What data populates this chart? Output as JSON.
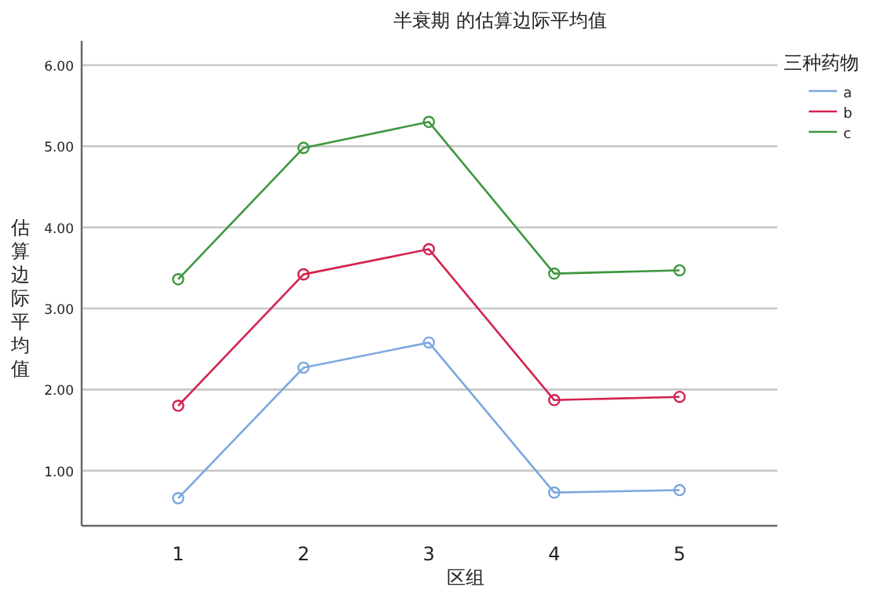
{
  "chart_data": {
    "type": "line",
    "title": "半衰期 的估算边际平均值",
    "xlabel": "区组",
    "ylabel": "估算边际平均值",
    "legend_title": "三种药物",
    "categories": [
      "1",
      "2",
      "3",
      "4",
      "5"
    ],
    "series": [
      {
        "name": "a",
        "color": "#7ca7de",
        "values": [
          0.66,
          2.27,
          2.58,
          0.73,
          0.76
        ]
      },
      {
        "name": "b",
        "color": "#d2244f",
        "values": [
          1.8,
          3.42,
          3.73,
          1.87,
          1.91
        ]
      },
      {
        "name": "c",
        "color": "#3f973f",
        "values": [
          3.36,
          4.98,
          5.3,
          3.43,
          3.47
        ]
      }
    ],
    "ylim": [
      0.32,
      6.3
    ],
    "yticks": [
      {
        "value": 1,
        "label": "1.00"
      },
      {
        "value": 2,
        "label": "2.00"
      },
      {
        "value": 3,
        "label": "3.00"
      },
      {
        "value": 4,
        "label": "4.00"
      },
      {
        "value": 5,
        "label": "5.00"
      },
      {
        "value": 6,
        "label": "6.00"
      }
    ],
    "grid": "y",
    "legend": "top right",
    "marker": "circle",
    "line_style": "solid"
  }
}
